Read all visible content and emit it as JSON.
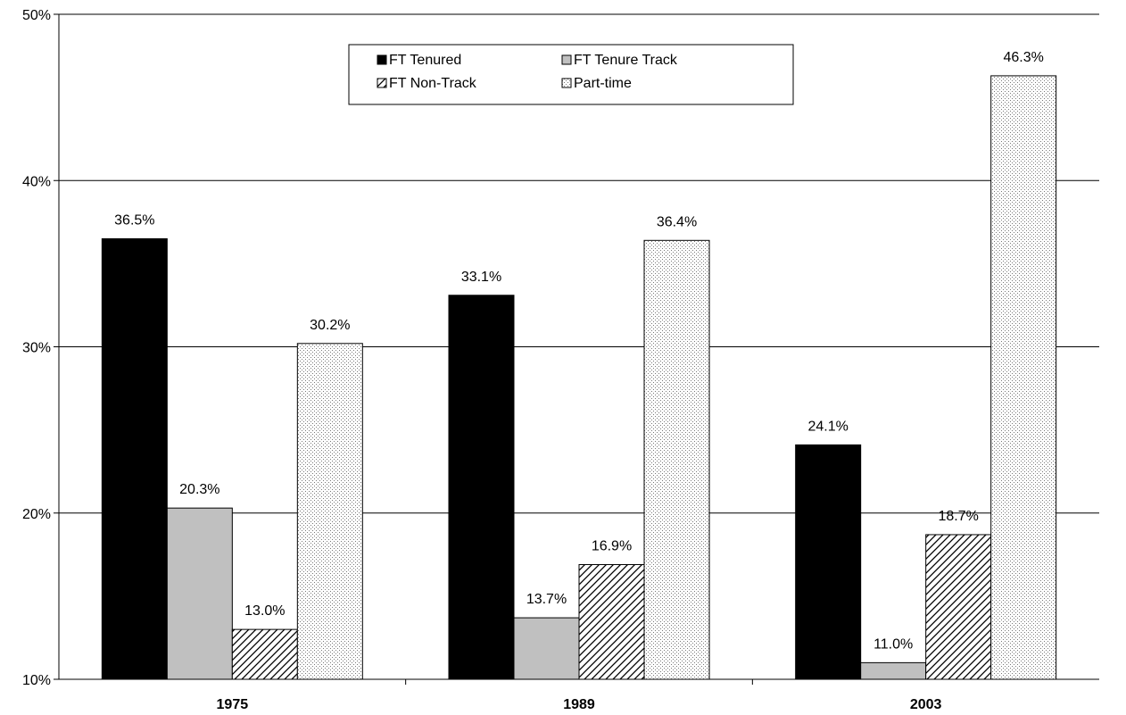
{
  "chart_data": {
    "type": "bar",
    "title": "",
    "xlabel": "",
    "ylabel": "",
    "categories": [
      "1975",
      "1989",
      "2003"
    ],
    "ylim": [
      10,
      50
    ],
    "yticks": [
      10,
      20,
      30,
      40,
      50
    ],
    "ytick_labels": [
      "10%",
      "20%",
      "30%",
      "40%",
      "50%"
    ],
    "grid": true,
    "legend_position": "top-center",
    "series": [
      {
        "name": "FT Tenured",
        "values": [
          36.5,
          33.1,
          24.1
        ],
        "labels": [
          "36.5%",
          "33.1%",
          "24.1%"
        ],
        "color": "#000000",
        "pattern": "solid"
      },
      {
        "name": "FT Tenure Track",
        "values": [
          20.3,
          13.7,
          11.0
        ],
        "labels": [
          "20.3%",
          "13.7%",
          "11.0%"
        ],
        "color": "#c0c0c0",
        "pattern": "solid"
      },
      {
        "name": "FT Non-Track",
        "values": [
          13.0,
          16.9,
          18.7
        ],
        "labels": [
          "13.0%",
          "16.9%",
          "18.7%"
        ],
        "color": "#ffffff",
        "pattern": "diagonal-hatch"
      },
      {
        "name": "Part-time",
        "values": [
          30.2,
          36.4,
          46.3
        ],
        "labels": [
          "30.2%",
          "36.4%",
          "46.3%"
        ],
        "color": "#ffffff",
        "pattern": "dots"
      }
    ]
  }
}
